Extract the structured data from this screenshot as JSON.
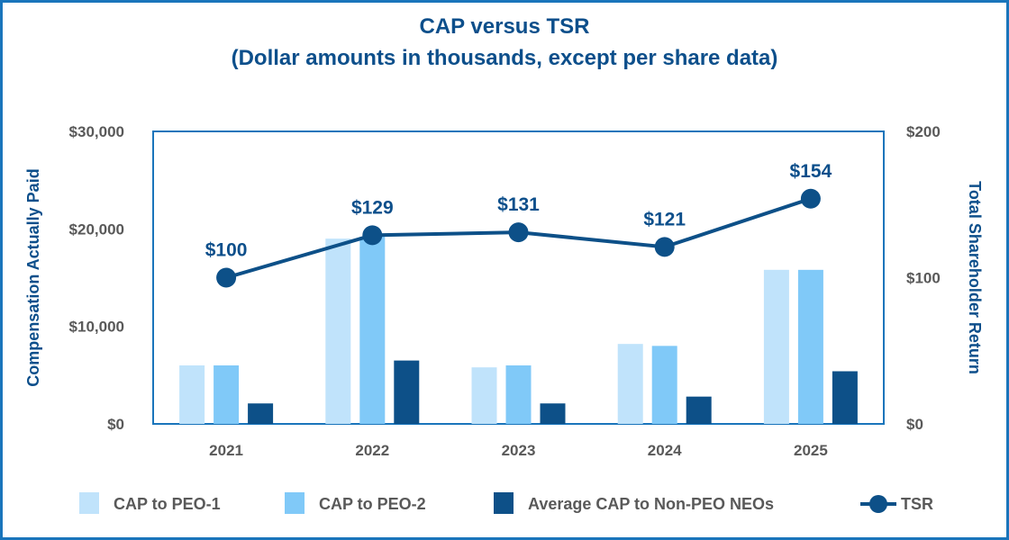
{
  "chart_data": {
    "type": "bar",
    "title": "CAP versus TSR",
    "subtitle": "(Dollar amounts in thousands, except per share data)",
    "categories": [
      "2021",
      "2022",
      "2023",
      "2024",
      "2025"
    ],
    "ylabel": "Compensation Actually Paid",
    "y2label": "Total Shareholder Return",
    "ylim": [
      0,
      30000
    ],
    "y2lim": [
      0,
      200
    ],
    "yticks": [
      0,
      10000,
      20000,
      30000
    ],
    "ytick_labels": [
      "$0",
      "$10,000",
      "$20,000",
      "$30,000"
    ],
    "y2ticks": [
      0,
      100,
      200
    ],
    "y2tick_labels": [
      "$0",
      "$100",
      "$200"
    ],
    "series": [
      {
        "name": "CAP to PEO-1",
        "kind": "bar",
        "axis": "left",
        "color": "#c0e3fb",
        "values": [
          6000,
          19000,
          5800,
          8200,
          15800
        ]
      },
      {
        "name": "CAP to PEO-2",
        "kind": "bar",
        "axis": "left",
        "color": "#80c9f8",
        "values": [
          6000,
          19200,
          6000,
          8000,
          15800
        ]
      },
      {
        "name": "Average CAP to Non-PEO NEOs",
        "kind": "bar",
        "axis": "left",
        "color": "#0d5088",
        "values": [
          2100,
          6500,
          2100,
          2800,
          5400
        ]
      },
      {
        "name": "TSR",
        "kind": "line",
        "axis": "right",
        "color": "#0d5088",
        "values": [
          100,
          129,
          131,
          121,
          154
        ],
        "labels": [
          "$100",
          "$129",
          "$131",
          "$121",
          "$154"
        ]
      }
    ],
    "legend_position": "bottom",
    "grid": false
  }
}
